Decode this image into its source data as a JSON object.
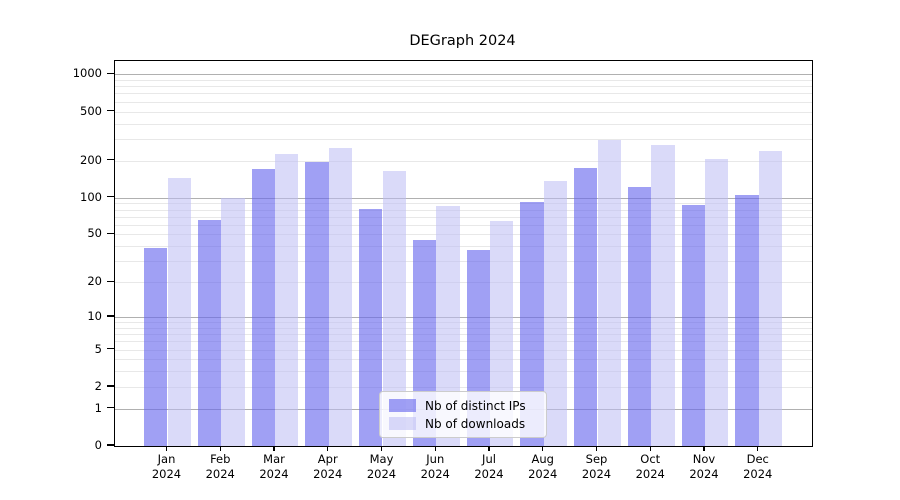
{
  "chart_data": {
    "type": "bar",
    "title": "DEGraph 2024",
    "year": "2024",
    "months": [
      "Jan",
      "Feb",
      "Mar",
      "Apr",
      "May",
      "Jun",
      "Jul",
      "Aug",
      "Sep",
      "Oct",
      "Nov",
      "Dec"
    ],
    "series": [
      {
        "name": "Nb of distinct IPs",
        "color": "rgba(102,102,238,0.62)",
        "flat_hex": "#a8a8f0",
        "values": [
          39,
          66,
          172,
          197,
          81,
          45,
          37,
          93,
          175,
          123,
          88,
          105
        ]
      },
      {
        "name": "Nb of downloads",
        "color": "rgba(187,187,244,0.55)",
        "flat_hex": "#d9d9f7",
        "values": [
          145,
          100,
          225,
          252,
          166,
          85,
          65,
          138,
          295,
          270,
          205,
          240
        ]
      }
    ],
    "yscale": "log1p",
    "y_ticks": [
      0,
      1,
      2,
      5,
      10,
      20,
      50,
      100,
      200,
      500,
      1000
    ],
    "ylim": [
      0,
      1290
    ],
    "grid": true,
    "legend_position": "inside-bottom-center",
    "colors": {
      "major_grid": "#b0b0b0",
      "minor_grid": "#e8e8e8",
      "axis": "#000000",
      "background": "#ffffff"
    }
  }
}
